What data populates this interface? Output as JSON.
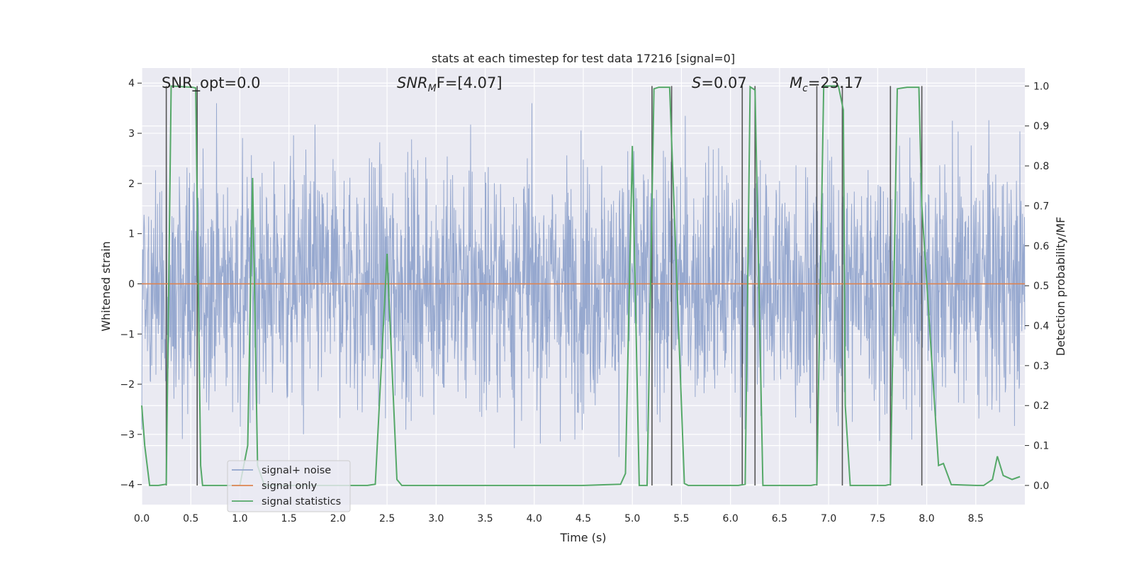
{
  "chart_data": {
    "type": "line",
    "title": "stats at each timestep for test data 17216 [signal=0]",
    "xlabel": "Time (s)",
    "ylabel": "Whitened strain",
    "ylabel_right": "Detection probability/MF",
    "xlim": [
      0.0,
      9.0
    ],
    "ylim": [
      -4.4,
      4.3
    ],
    "ylim_right": [
      -0.048,
      1.045
    ],
    "x_ticks": [
      "0.0",
      "0.5",
      "1.0",
      "1.5",
      "2.0",
      "2.5",
      "3.0",
      "3.5",
      "4.0",
      "4.5",
      "5.0",
      "5.5",
      "6.0",
      "6.5",
      "7.0",
      "7.5",
      "8.0",
      "8.5"
    ],
    "y_ticks": [
      "4",
      "3",
      "2",
      "1",
      "0",
      "−1",
      "−2",
      "−3",
      "−4"
    ],
    "y_ticks_right": [
      "1.0",
      "0.9",
      "0.8",
      "0.7",
      "0.6",
      "0.5",
      "0.4",
      "0.3",
      "0.2",
      "0.1",
      "0.0"
    ],
    "grid": true,
    "legend_position": "lower-left",
    "annotations": {
      "snr_opt": "SNR_opt=0.0",
      "snr_mf_base": "SNR",
      "snr_mf_sub": "M",
      "snr_mf_rest": "F=[4.07]",
      "s_italic": "S",
      "s_rest": "=0.07",
      "mc_base": "M",
      "mc_sub": "c",
      "mc_rest": "=23.17"
    },
    "series": [
      {
        "name": "signal+ noise",
        "color": "#91a4cc",
        "description": "whitened strain noise, roughly symmetric about 0 with amplitude mostly within ±2.5",
        "amplitude_envelope": 2.2,
        "sample_rate_hz": 256
      },
      {
        "name": "signal only",
        "color": "#dd8452",
        "values_constant": 0.0
      },
      {
        "name": "signal statistics",
        "color": "#55a868",
        "axis": "right",
        "x": [
          0.0,
          0.03,
          0.08,
          0.17,
          0.25,
          0.3,
          0.52,
          0.55,
          0.6,
          0.62,
          0.8,
          1.0,
          1.08,
          1.13,
          1.18,
          1.25,
          2.3,
          2.38,
          2.5,
          2.6,
          2.65,
          3.0,
          4.5,
          4.88,
          4.93,
          5.0,
          5.07,
          5.15,
          5.22,
          5.27,
          5.38,
          5.53,
          5.57,
          6.08,
          6.15,
          6.2,
          6.25,
          6.33,
          6.82,
          6.88,
          6.95,
          7.05,
          7.1,
          7.15,
          7.17,
          7.22,
          7.58,
          7.63,
          7.7,
          7.8,
          7.92,
          7.95,
          8.12,
          8.17,
          8.25,
          8.5,
          8.58,
          8.67,
          8.72,
          8.78,
          8.87,
          8.95
        ],
        "values": [
          0.2,
          0.1,
          0.0,
          0.0,
          0.003,
          1.0,
          0.997,
          0.995,
          0.05,
          0.0,
          0.0,
          0.0,
          0.1,
          0.77,
          0.05,
          0.0,
          0.0,
          0.003,
          0.58,
          0.015,
          0.0,
          0.0,
          0.0,
          0.003,
          0.03,
          0.85,
          0.0,
          0.0,
          0.993,
          0.997,
          0.997,
          0.005,
          0.0,
          0.0,
          0.003,
          0.998,
          0.99,
          0.0,
          0.0,
          0.003,
          1.0,
          1.0,
          1.0,
          0.94,
          0.2,
          0.0,
          0.0,
          0.003,
          0.993,
          0.997,
          0.997,
          0.7,
          0.05,
          0.055,
          0.002,
          0.0,
          0.0,
          0.015,
          0.073,
          0.025,
          0.015,
          0.022
        ]
      }
    ],
    "vertical_lines_x": [
      0.25,
      0.565,
      5.2,
      5.4,
      6.12,
      6.25,
      6.88,
      7.14,
      7.63,
      7.95
    ]
  }
}
